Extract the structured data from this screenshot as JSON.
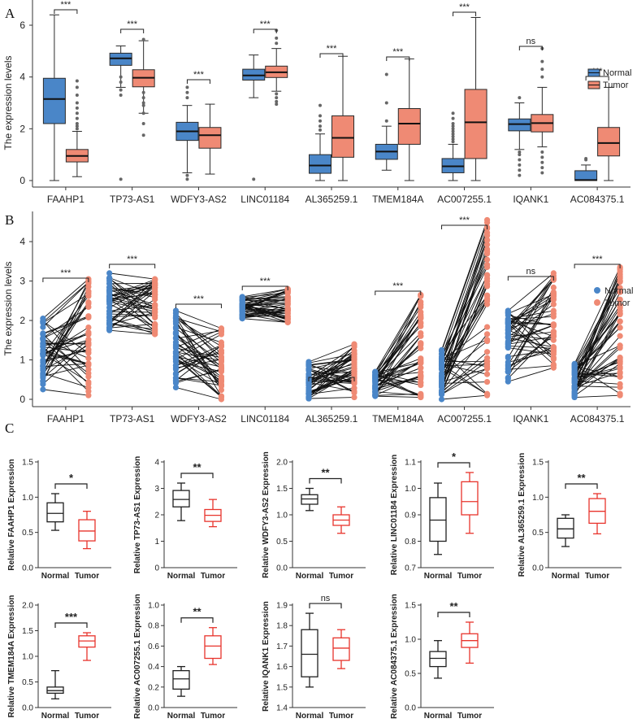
{
  "panels": [
    {
      "letter": "A"
    },
    {
      "letter": "B"
    },
    {
      "letter": "C"
    }
  ],
  "colors": {
    "normal": "#4a86c8",
    "tumor": "#ef8a74",
    "normal_line": "#1f1f1f",
    "tumor_c": "#e8342c",
    "axis": "#333333",
    "box_edge": "#2a2a2a"
  },
  "chart_data": [
    {
      "id": "A",
      "type": "box",
      "ylabel": "The expression levels",
      "ylim": [
        0,
        6
      ],
      "yticks": [
        0,
        2,
        4,
        6
      ],
      "legend": {
        "position": "top-right",
        "entries": [
          "Normal",
          "Tumor"
        ]
      },
      "categories": [
        "FAAHP1",
        "TP73-AS1",
        "WDFY3-AS2",
        "LINC01184",
        "AL365259.1",
        "TMEM184A",
        "AC007255.1",
        "IQANK1",
        "AC084375.1"
      ],
      "significance": [
        "***",
        "***",
        "***",
        "***",
        "***",
        "***",
        "***",
        "ns",
        "***"
      ],
      "series": [
        {
          "name": "Normal",
          "boxes": [
            {
              "min": 0,
              "q1": 2.2,
              "med": 3.15,
              "q3": 3.95,
              "max": 6.4,
              "outliers": []
            },
            {
              "min": 3.6,
              "q1": 4.45,
              "med": 4.72,
              "q3": 4.92,
              "max": 5.2,
              "outliers": [
                4.0,
                3.8,
                3.5,
                3.3,
                0.05
              ]
            },
            {
              "min": 0.3,
              "q1": 1.55,
              "med": 1.9,
              "q3": 2.25,
              "max": 2.9,
              "outliers": [
                3.2,
                3.4,
                3.6,
                0.2,
                0.05
              ]
            },
            {
              "min": 3.2,
              "q1": 3.88,
              "med": 4.06,
              "q3": 4.3,
              "max": 4.85,
              "outliers": [
                0.05
              ]
            },
            {
              "min": 0,
              "q1": 0.28,
              "med": 0.58,
              "q3": 1.0,
              "max": 1.8,
              "outliers": [
                1.95,
                2.1,
                2.3,
                2.5,
                2.9
              ]
            },
            {
              "min": 0.4,
              "q1": 0.82,
              "med": 1.12,
              "q3": 1.4,
              "max": 2.1,
              "outliers": [
                2.3,
                3.0,
                4.1
              ]
            },
            {
              "min": 0,
              "q1": 0.3,
              "med": 0.55,
              "q3": 0.85,
              "max": 1.4,
              "outliers": [
                1.5,
                1.6,
                1.7,
                1.8,
                1.9,
                2.0,
                2.1,
                2.2,
                2.4,
                2.6
              ]
            },
            {
              "min": 1.2,
              "q1": 1.92,
              "med": 2.18,
              "q3": 2.38,
              "max": 3.0,
              "outliers": [
                1.1,
                1.0,
                0.8,
                0.6,
                0.4,
                0.2,
                3.2
              ]
            },
            {
              "min": 0,
              "q1": 0.0,
              "med": 0.02,
              "q3": 0.38,
              "max": 0.6,
              "outliers": [
                0.8,
                0.85
              ]
            }
          ]
        },
        {
          "name": "Tumor",
          "boxes": [
            {
              "min": 0.15,
              "q1": 0.72,
              "med": 0.95,
              "q3": 1.2,
              "max": 1.9,
              "outliers": [
                2.0,
                2.1,
                2.2,
                2.4,
                2.6,
                2.8,
                3.0,
                3.3,
                3.6,
                3.85
              ]
            },
            {
              "min": 2.6,
              "q1": 3.62,
              "med": 3.97,
              "q3": 4.28,
              "max": 5.4,
              "outliers": [
                3.4,
                3.2,
                3.0,
                2.9,
                2.6,
                2.2,
                1.75,
                5.45
              ]
            },
            {
              "min": 0.25,
              "q1": 1.25,
              "med": 1.75,
              "q3": 2.05,
              "max": 2.95,
              "outliers": []
            },
            {
              "min": 3.45,
              "q1": 3.98,
              "med": 4.18,
              "q3": 4.42,
              "max": 5.1,
              "outliers": [
                3.35,
                3.2,
                3.05,
                2.95,
                5.3,
                5.5,
                5.8
              ]
            },
            {
              "min": 0,
              "q1": 0.9,
              "med": 1.65,
              "q3": 2.5,
              "max": 4.8,
              "outliers": []
            },
            {
              "min": 0,
              "q1": 1.4,
              "med": 2.2,
              "q3": 2.78,
              "max": 4.7,
              "outliers": []
            },
            {
              "min": 0,
              "q1": 0.85,
              "med": 2.25,
              "q3": 3.52,
              "max": 6.3,
              "outliers": []
            },
            {
              "min": 1.3,
              "q1": 1.88,
              "med": 2.22,
              "q3": 2.55,
              "max": 3.6,
              "outliers": [
                1.1,
                0.9,
                0.7,
                0.5,
                0.3,
                4.0,
                4.3,
                4.6,
                5.1
              ]
            },
            {
              "min": 0,
              "q1": 0.95,
              "med": 1.45,
              "q3": 2.05,
              "max": 3.6,
              "outliers": []
            }
          ]
        }
      ]
    },
    {
      "id": "B",
      "type": "paired-scatter",
      "ylabel": "The expression levels",
      "ylim": [
        0,
        4.6
      ],
      "yticks": [
        0,
        1,
        2,
        3,
        4
      ],
      "legend": {
        "position": "top-right",
        "entries": [
          "Normal",
          "Tumor"
        ]
      },
      "categories": [
        "FAAHP1",
        "TP73-AS1",
        "WDFY3-AS2",
        "LINC01184",
        "AL365259.1",
        "TMEM184A",
        "AC007255.1",
        "IQANK1",
        "AC084375.1"
      ],
      "significance": [
        "***",
        "***",
        "***",
        "***",
        "***",
        "***",
        "***",
        "ns",
        "***"
      ],
      "series": [
        {
          "name": "Normal",
          "range": [
            [
              0.25,
              2.05
            ],
            [
              1.75,
              3.2
            ],
            [
              0.3,
              2.25
            ],
            [
              2.05,
              2.6
            ],
            [
              0.02,
              0.95
            ],
            [
              0.08,
              0.7
            ],
            [
              0.0,
              1.25
            ],
            [
              0.45,
              2.25
            ],
            [
              0.05,
              0.9
            ]
          ]
        },
        {
          "name": "Tumor",
          "range": [
            [
              0.1,
              3.05
            ],
            [
              1.65,
              3.05
            ],
            [
              0.0,
              1.8
            ],
            [
              1.95,
              2.8
            ],
            [
              0.05,
              1.4
            ],
            [
              0.05,
              2.65
            ],
            [
              0.1,
              4.55
            ],
            [
              0.8,
              3.2
            ],
            [
              0.1,
              3.35
            ]
          ]
        }
      ]
    },
    {
      "id": "C",
      "type": "box-small-multiples",
      "xcategories": [
        "Normal",
        "Tumor"
      ],
      "plots": [
        {
          "ylabel": "Relative FAAHP1 Expression",
          "ylim": [
            0,
            1.5
          ],
          "yticks": [
            0,
            0.5,
            1.0,
            1.5
          ],
          "ytick_labels": [
            "0.0",
            "0.5",
            "1.0",
            "1.5"
          ],
          "sig": "*",
          "normal": {
            "min": 0.53,
            "q1": 0.65,
            "med": 0.77,
            "q3": 0.92,
            "max": 1.05
          },
          "tumor": {
            "min": 0.27,
            "q1": 0.38,
            "med": 0.52,
            "q3": 0.68,
            "max": 0.8
          }
        },
        {
          "ylabel": "Relative TP73-AS1 Expression",
          "ylim": [
            0,
            4
          ],
          "yticks": [
            0,
            1,
            2,
            3,
            4
          ],
          "ytick_labels": [
            "0",
            "1",
            "2",
            "3",
            "4"
          ],
          "sig": "**",
          "normal": {
            "min": 1.78,
            "q1": 2.3,
            "med": 2.58,
            "q3": 2.92,
            "max": 3.2
          },
          "tumor": {
            "min": 1.55,
            "q1": 1.75,
            "med": 1.98,
            "q3": 2.2,
            "max": 2.58
          }
        },
        {
          "ylabel": "Relative WDFY3-AS2 Expression",
          "ylim": [
            0,
            2.0
          ],
          "yticks": [
            0,
            0.5,
            1.0,
            1.5,
            2.0
          ],
          "ytick_labels": [
            "0.0",
            "0.5",
            "1.0",
            "1.5",
            "2.0"
          ],
          "sig": "**",
          "normal": {
            "min": 1.08,
            "q1": 1.2,
            "med": 1.3,
            "q3": 1.38,
            "max": 1.5
          },
          "tumor": {
            "min": 0.65,
            "q1": 0.8,
            "med": 0.9,
            "q3": 1.0,
            "max": 1.15
          }
        },
        {
          "ylabel": "Relative LINC01184 Expression",
          "ylim": [
            0.7,
            1.1
          ],
          "yticks": [
            0.7,
            0.8,
            0.9,
            1.0,
            1.1
          ],
          "ytick_labels": [
            "0.7",
            "0.8",
            "0.9",
            "1.0",
            "1.1"
          ],
          "sig": "*",
          "normal": {
            "min": 0.75,
            "q1": 0.8,
            "med": 0.88,
            "q3": 0.965,
            "max": 1.02
          },
          "tumor": {
            "min": 0.83,
            "q1": 0.9,
            "med": 0.95,
            "q3": 1.025,
            "max": 1.06
          }
        },
        {
          "ylabel": "Relative AL365259.1 Expression",
          "ylim": [
            0,
            1.5
          ],
          "yticks": [
            0,
            0.5,
            1.0,
            1.5
          ],
          "ytick_labels": [
            "0.0",
            "0.5",
            "1.0",
            "1.5"
          ],
          "sig": "**",
          "normal": {
            "min": 0.3,
            "q1": 0.42,
            "med": 0.55,
            "q3": 0.7,
            "max": 0.75
          },
          "tumor": {
            "min": 0.48,
            "q1": 0.63,
            "med": 0.8,
            "q3": 0.98,
            "max": 1.05
          }
        },
        {
          "ylabel": "Relative TMEM184A Expression",
          "ylim": [
            0,
            2.0
          ],
          "yticks": [
            0,
            0.5,
            1.0,
            1.5,
            2.0
          ],
          "ytick_labels": [
            "0.0",
            "0.5",
            "1.0",
            "1.5",
            "2.0"
          ],
          "sig": "***",
          "normal": {
            "min": 0.17,
            "q1": 0.28,
            "med": 0.33,
            "q3": 0.4,
            "max": 0.72
          },
          "tumor": {
            "min": 0.92,
            "q1": 1.18,
            "med": 1.3,
            "q3": 1.4,
            "max": 1.46
          }
        },
        {
          "ylabel": "Relative AC007255.1 Expression",
          "ylim": [
            0,
            1.0
          ],
          "yticks": [
            0,
            0.2,
            0.4,
            0.6,
            0.8,
            1.0
          ],
          "ytick_labels": [
            "0.0",
            "0.2",
            "0.4",
            "0.6",
            "0.8",
            "1.0"
          ],
          "sig": "**",
          "normal": {
            "min": 0.11,
            "q1": 0.18,
            "med": 0.28,
            "q3": 0.36,
            "max": 0.4
          },
          "tumor": {
            "min": 0.42,
            "q1": 0.48,
            "med": 0.6,
            "q3": 0.7,
            "max": 0.78
          }
        },
        {
          "ylabel": "Relative IQANK1 Expression",
          "ylim": [
            1.4,
            1.9
          ],
          "yticks": [
            1.4,
            1.5,
            1.6,
            1.7,
            1.8,
            1.9
          ],
          "ytick_labels": [
            "1.4",
            "1.5",
            "1.6",
            "1.7",
            "1.8",
            "1.9"
          ],
          "sig": "ns",
          "normal": {
            "min": 1.5,
            "q1": 1.55,
            "med": 1.66,
            "q3": 1.78,
            "max": 1.86
          },
          "tumor": {
            "min": 1.59,
            "q1": 1.63,
            "med": 1.69,
            "q3": 1.74,
            "max": 1.78
          }
        },
        {
          "ylabel": "Relative AC084375.1 Expression",
          "ylim": [
            0,
            1.5
          ],
          "yticks": [
            0,
            0.5,
            1.0,
            1.5
          ],
          "ytick_labels": [
            "0.0",
            "0.5",
            "1.0",
            "1.5"
          ],
          "sig": "**",
          "normal": {
            "min": 0.43,
            "q1": 0.6,
            "med": 0.72,
            "q3": 0.82,
            "max": 0.98
          },
          "tumor": {
            "min": 0.65,
            "q1": 0.88,
            "med": 0.98,
            "q3": 1.08,
            "max": 1.25
          }
        }
      ]
    }
  ]
}
